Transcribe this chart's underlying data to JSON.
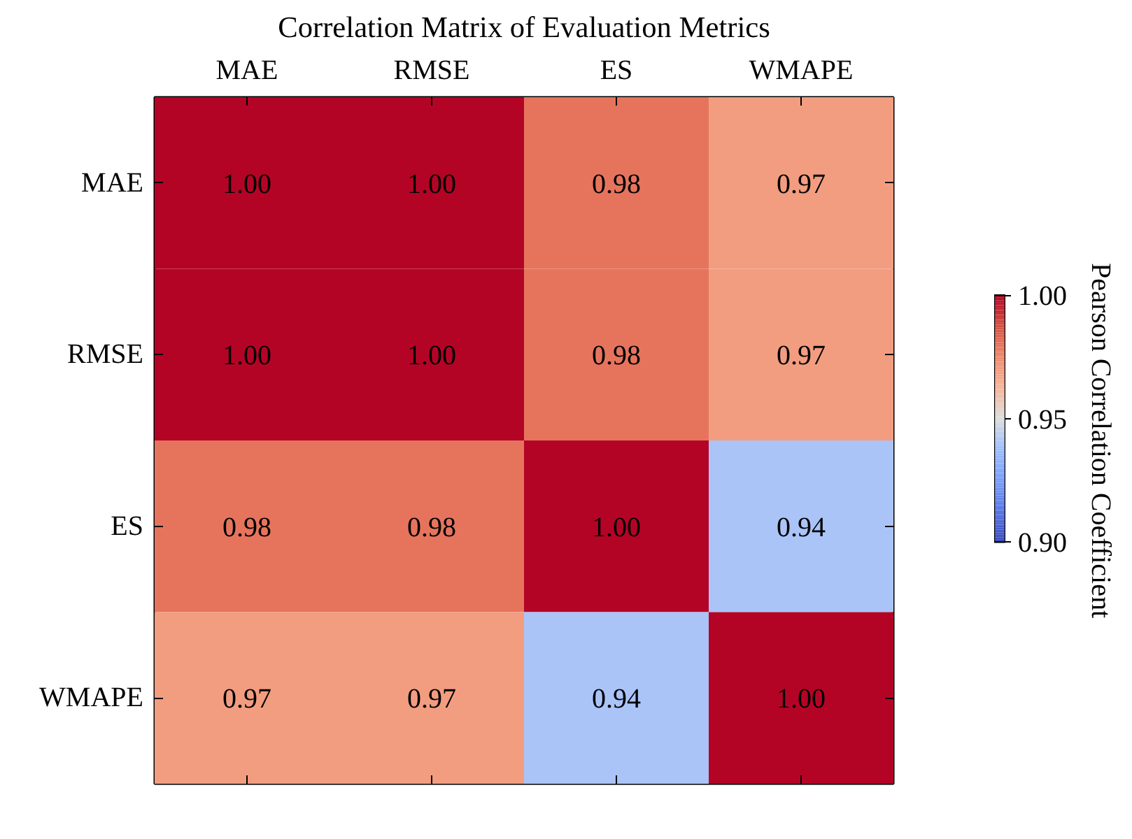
{
  "chart_data": {
    "type": "heatmap",
    "title": "Correlation Matrix of Evaluation Metrics",
    "categories": [
      "MAE",
      "RMSE",
      "ES",
      "WMAPE"
    ],
    "y_categories": [
      "MAE",
      "RMSE",
      "ES",
      "WMAPE"
    ],
    "cells": [
      [
        1.0,
        1.0,
        0.98,
        0.97
      ],
      [
        1.0,
        1.0,
        0.98,
        0.97
      ],
      [
        0.98,
        0.98,
        1.0,
        0.94
      ],
      [
        0.97,
        0.97,
        0.94,
        1.0
      ]
    ],
    "cell_labels": [
      [
        "1.00",
        "1.00",
        "0.98",
        "0.97"
      ],
      [
        "1.00",
        "1.00",
        "0.98",
        "0.97"
      ],
      [
        "0.98",
        "0.98",
        "1.00",
        "0.94"
      ],
      [
        "0.97",
        "0.97",
        "0.94",
        "1.00"
      ]
    ],
    "clabel": "Pearson Correlation Coefficient",
    "clim": [
      0.9,
      1.0
    ],
    "cticks": [
      {
        "value": 0.9,
        "label": "0.90"
      },
      {
        "value": 0.95,
        "label": "0.95"
      },
      {
        "value": 1.0,
        "label": "1.00"
      }
    ]
  }
}
